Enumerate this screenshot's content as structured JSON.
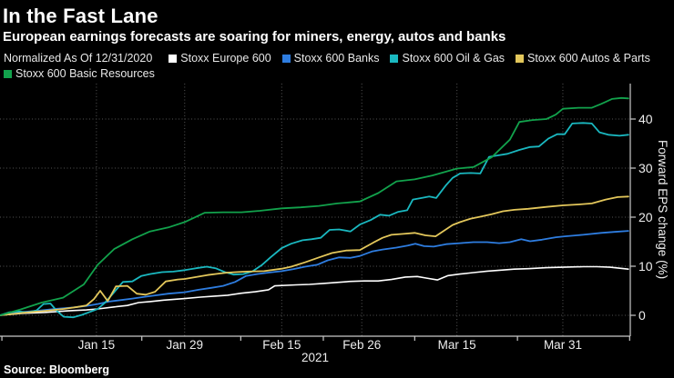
{
  "header": {
    "title": "In the Fast Lane",
    "subtitle": "European earnings forecasts are soaring for miners, energy, autos and banks"
  },
  "legend": {
    "note": "Normalized As Of 12/31/2020"
  },
  "source": "Source: Bloomberg",
  "colors": {
    "background": "#000000",
    "grid": "#545454",
    "axis": "#c9c9c9",
    "tick_text": "#ededed",
    "europe600": "#ffffff",
    "banks": "#2e7de0",
    "oil_gas": "#1ab8c0",
    "autos_parts": "#e3c75b",
    "basic_resources": "#12a24c"
  },
  "chart_data": {
    "type": "line",
    "title": "In the Fast Lane",
    "subtitle": "European earnings forecasts are soaring for miners, energy, autos and banks",
    "xlabel": "2021",
    "ylabel": "Forward EPS change (%)",
    "ylim": [
      -4.5,
      46
    ],
    "grid": true,
    "legend_position": "top",
    "y_ticks": [
      0,
      10,
      20,
      30,
      40
    ],
    "x_ticks": [
      {
        "label": "Jan 15",
        "pos": 15.3
      },
      {
        "label": "Jan 29",
        "pos": 29.3
      },
      {
        "label": "Feb 15",
        "pos": 44.7
      },
      {
        "label": "Feb 26",
        "pos": 57.4
      },
      {
        "label": "Mar 15",
        "pos": 72.5
      },
      {
        "label": "Mar 31",
        "pos": 89.3
      }
    ],
    "x_minor_ticks_pos": [
      0.3,
      22.5,
      38.2,
      51.3,
      65.8,
      82.1,
      99.9
    ],
    "x_axis_note": "pos is percent along the time axis from 12/31/2020 (0) to early Apr 2021 (100)",
    "series": [
      {
        "id": "europe600",
        "name": "Stoxx Europe 600",
        "color": "#ffffff",
        "end_value": 9.4,
        "points": [
          [
            0,
            0
          ],
          [
            3.6,
            0.4
          ],
          [
            7.2,
            0.6
          ],
          [
            10.8,
            0.9
          ],
          [
            13.7,
            1.1
          ],
          [
            15.5,
            1.3
          ],
          [
            18.1,
            1.7
          ],
          [
            20.2,
            2.0
          ],
          [
            22.0,
            2.6
          ],
          [
            23.8,
            2.8
          ],
          [
            26.0,
            3.1
          ],
          [
            29.3,
            3.4
          ],
          [
            31.8,
            3.7
          ],
          [
            34.0,
            3.9
          ],
          [
            36.1,
            4.1
          ],
          [
            38.3,
            4.5
          ],
          [
            40.5,
            4.8
          ],
          [
            42.6,
            5.2
          ],
          [
            43.6,
            6.0
          ],
          [
            47.0,
            6.2
          ],
          [
            49.1,
            6.3
          ],
          [
            51.3,
            6.5
          ],
          [
            53.5,
            6.7
          ],
          [
            55.6,
            6.9
          ],
          [
            57.8,
            7.0
          ],
          [
            60.0,
            7.0
          ],
          [
            62.1,
            7.3
          ],
          [
            64.3,
            7.8
          ],
          [
            66.2,
            7.9
          ],
          [
            67.6,
            7.6
          ],
          [
            69.4,
            7.2
          ],
          [
            71.1,
            8.1
          ],
          [
            73.0,
            8.4
          ],
          [
            75.1,
            8.7
          ],
          [
            77.3,
            9.0
          ],
          [
            79.5,
            9.2
          ],
          [
            81.6,
            9.4
          ],
          [
            83.8,
            9.5
          ],
          [
            86.7,
            9.7
          ],
          [
            89.3,
            9.8
          ],
          [
            92.5,
            9.9
          ],
          [
            94.7,
            9.9
          ],
          [
            96.8,
            9.8
          ],
          [
            99.7,
            9.4
          ]
        ]
      },
      {
        "id": "banks",
        "name": "Stoxx 600 Banks",
        "color": "#2e7de0",
        "end_value": 17.2,
        "points": [
          [
            0,
            0
          ],
          [
            2.9,
            0.6
          ],
          [
            5.8,
            0.9
          ],
          [
            8.7,
            1.3
          ],
          [
            11.6,
            1.6
          ],
          [
            13.7,
            1.9
          ],
          [
            15.5,
            2.3
          ],
          [
            17.3,
            2.8
          ],
          [
            19.1,
            3.1
          ],
          [
            21.0,
            3.4
          ],
          [
            23.1,
            3.8
          ],
          [
            24.9,
            4.1
          ],
          [
            26.7,
            4.4
          ],
          [
            29.3,
            4.7
          ],
          [
            31.5,
            5.2
          ],
          [
            33.5,
            5.6
          ],
          [
            35.4,
            6.0
          ],
          [
            37.3,
            6.8
          ],
          [
            39.0,
            8.0
          ],
          [
            40.8,
            8.4
          ],
          [
            42.6,
            8.7
          ],
          [
            44.7,
            9.0
          ],
          [
            46.5,
            9.4
          ],
          [
            48.4,
            9.9
          ],
          [
            50.3,
            10.3
          ],
          [
            52.0,
            11.2
          ],
          [
            53.8,
            11.8
          ],
          [
            55.6,
            11.7
          ],
          [
            57.1,
            12.1
          ],
          [
            59.0,
            13.0
          ],
          [
            60.7,
            13.4
          ],
          [
            62.9,
            13.8
          ],
          [
            64.7,
            14.2
          ],
          [
            65.9,
            14.6
          ],
          [
            67.3,
            14.1
          ],
          [
            68.8,
            14.0
          ],
          [
            70.8,
            14.5
          ],
          [
            73.0,
            14.7
          ],
          [
            75.1,
            14.9
          ],
          [
            77.3,
            14.9
          ],
          [
            79.2,
            14.7
          ],
          [
            80.9,
            14.9
          ],
          [
            82.7,
            15.5
          ],
          [
            84.1,
            15.1
          ],
          [
            86.0,
            15.4
          ],
          [
            88.2,
            15.9
          ],
          [
            89.6,
            16.1
          ],
          [
            92.5,
            16.4
          ],
          [
            95.4,
            16.8
          ],
          [
            97.5,
            17.0
          ],
          [
            99.7,
            17.2
          ]
        ]
      },
      {
        "id": "oilgas",
        "name": "Stoxx 600 Oil & Gas",
        "color": "#1ab8c0",
        "end_value": 36.8,
        "points": [
          [
            0,
            0
          ],
          [
            1.4,
            0.6
          ],
          [
            2.9,
            0.8
          ],
          [
            4.3,
            0.6
          ],
          [
            5.8,
            1.0
          ],
          [
            6.9,
            2.3
          ],
          [
            8.0,
            2.4
          ],
          [
            9.0,
            0.9
          ],
          [
            10.1,
            -0.3
          ],
          [
            11.6,
            -0.4
          ],
          [
            13.0,
            0.1
          ],
          [
            14.5,
            0.8
          ],
          [
            15.5,
            1.3
          ],
          [
            16.6,
            2.5
          ],
          [
            18.1,
            4.7
          ],
          [
            19.5,
            6.8
          ],
          [
            21.0,
            6.9
          ],
          [
            22.4,
            8.0
          ],
          [
            23.8,
            8.4
          ],
          [
            25.7,
            8.8
          ],
          [
            27.5,
            8.9
          ],
          [
            29.3,
            9.2
          ],
          [
            31.1,
            9.6
          ],
          [
            32.8,
            9.9
          ],
          [
            34.2,
            9.6
          ],
          [
            35.7,
            8.8
          ],
          [
            37.1,
            8.3
          ],
          [
            38.6,
            8.4
          ],
          [
            40.0,
            8.9
          ],
          [
            41.5,
            10.2
          ],
          [
            42.9,
            11.8
          ],
          [
            44.7,
            13.7
          ],
          [
            46.2,
            14.6
          ],
          [
            48.0,
            15.3
          ],
          [
            49.4,
            15.5
          ],
          [
            50.9,
            15.8
          ],
          [
            52.3,
            17.4
          ],
          [
            53.8,
            17.5
          ],
          [
            55.6,
            17.1
          ],
          [
            57.1,
            18.5
          ],
          [
            58.8,
            19.4
          ],
          [
            60.3,
            20.5
          ],
          [
            61.7,
            20.3
          ],
          [
            63.2,
            21.1
          ],
          [
            64.6,
            21.4
          ],
          [
            65.5,
            23.6
          ],
          [
            66.9,
            23.9
          ],
          [
            68.1,
            24.2
          ],
          [
            69.2,
            23.9
          ],
          [
            70.7,
            26.4
          ],
          [
            71.8,
            28.0
          ],
          [
            73.0,
            28.9
          ],
          [
            74.7,
            29.0
          ],
          [
            76.2,
            28.9
          ],
          [
            77.6,
            32.3
          ],
          [
            79.0,
            32.6
          ],
          [
            80.5,
            32.9
          ],
          [
            82.4,
            33.7
          ],
          [
            84.1,
            34.3
          ],
          [
            85.5,
            34.4
          ],
          [
            87.0,
            36.0
          ],
          [
            88.4,
            36.9
          ],
          [
            89.6,
            36.9
          ],
          [
            90.8,
            39.1
          ],
          [
            92.5,
            39.2
          ],
          [
            93.9,
            39.1
          ],
          [
            95.1,
            37.3
          ],
          [
            96.5,
            36.8
          ],
          [
            98.3,
            36.6
          ],
          [
            99.7,
            36.8
          ]
        ]
      },
      {
        "id": "autos",
        "name": "Stoxx 600 Autos & Parts",
        "color": "#e3c75b",
        "end_value": 24.2,
        "points": [
          [
            0,
            0
          ],
          [
            2.2,
            0.3
          ],
          [
            4.3,
            0.6
          ],
          [
            7.2,
            0.9
          ],
          [
            10.1,
            1.3
          ],
          [
            12.3,
            1.7
          ],
          [
            13.7,
            2.0
          ],
          [
            14.9,
            3.3
          ],
          [
            15.9,
            5.0
          ],
          [
            17.1,
            2.9
          ],
          [
            18.4,
            5.9
          ],
          [
            20.2,
            6.0
          ],
          [
            21.7,
            4.4
          ],
          [
            23.1,
            4.2
          ],
          [
            24.6,
            4.8
          ],
          [
            26.3,
            6.9
          ],
          [
            28.2,
            7.3
          ],
          [
            29.3,
            7.4
          ],
          [
            31.1,
            7.8
          ],
          [
            32.9,
            8.2
          ],
          [
            34.7,
            8.5
          ],
          [
            36.1,
            8.7
          ],
          [
            39.0,
            8.9
          ],
          [
            41.9,
            9.0
          ],
          [
            44.7,
            9.5
          ],
          [
            46.2,
            9.9
          ],
          [
            48.4,
            10.8
          ],
          [
            50.6,
            11.8
          ],
          [
            52.7,
            12.7
          ],
          [
            54.9,
            13.2
          ],
          [
            57.1,
            13.3
          ],
          [
            59.2,
            14.8
          ],
          [
            60.7,
            15.8
          ],
          [
            62.1,
            16.4
          ],
          [
            64.0,
            16.6
          ],
          [
            65.8,
            16.8
          ],
          [
            67.5,
            16.3
          ],
          [
            69.1,
            16.1
          ],
          [
            70.5,
            17.3
          ],
          [
            71.8,
            18.4
          ],
          [
            73.0,
            19.0
          ],
          [
            74.7,
            19.7
          ],
          [
            76.2,
            20.1
          ],
          [
            78.0,
            20.6
          ],
          [
            79.8,
            21.2
          ],
          [
            81.6,
            21.5
          ],
          [
            83.8,
            21.7
          ],
          [
            86.7,
            22.1
          ],
          [
            89.3,
            22.4
          ],
          [
            91.8,
            22.6
          ],
          [
            93.9,
            22.8
          ],
          [
            96.1,
            23.6
          ],
          [
            98.0,
            24.1
          ],
          [
            99.7,
            24.2
          ]
        ]
      },
      {
        "id": "resources",
        "name": "Stoxx 600 Basic Resources",
        "color": "#12a24c",
        "end_value": 44.2,
        "points": [
          [
            0,
            0
          ],
          [
            3.3,
            1.2
          ],
          [
            6.6,
            2.6
          ],
          [
            10.0,
            3.6
          ],
          [
            13.3,
            6.3
          ],
          [
            15.5,
            10.3
          ],
          [
            18.1,
            13.5
          ],
          [
            21.0,
            15.5
          ],
          [
            23.8,
            17.1
          ],
          [
            26.7,
            17.9
          ],
          [
            29.3,
            19.0
          ],
          [
            32.5,
            20.9
          ],
          [
            35.4,
            21.0
          ],
          [
            38.3,
            21.0
          ],
          [
            41.2,
            21.3
          ],
          [
            44.7,
            21.8
          ],
          [
            47.7,
            22.0
          ],
          [
            50.6,
            22.3
          ],
          [
            53.5,
            22.8
          ],
          [
            57.1,
            23.2
          ],
          [
            60.0,
            24.9
          ],
          [
            62.9,
            27.3
          ],
          [
            65.8,
            27.7
          ],
          [
            68.6,
            28.5
          ],
          [
            72.5,
            29.9
          ],
          [
            75.1,
            30.2
          ],
          [
            78.0,
            32.2
          ],
          [
            80.9,
            35.8
          ],
          [
            82.4,
            39.4
          ],
          [
            84.5,
            39.8
          ],
          [
            86.7,
            40.0
          ],
          [
            88.2,
            40.9
          ],
          [
            89.3,
            42.1
          ],
          [
            91.8,
            42.3
          ],
          [
            93.9,
            42.3
          ],
          [
            95.4,
            43.1
          ],
          [
            97.1,
            44.1
          ],
          [
            98.6,
            44.3
          ],
          [
            99.7,
            44.2
          ]
        ]
      }
    ]
  }
}
